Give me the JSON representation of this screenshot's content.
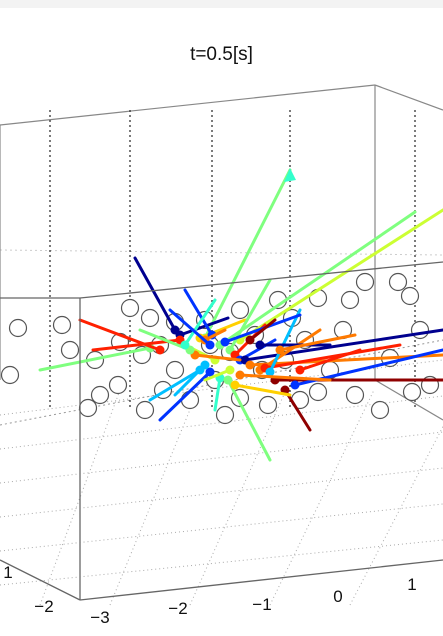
{
  "chart_data": {
    "type": "3d-scatter-vectors",
    "title": "t=0.5[s]",
    "x_ticks": [
      "−3",
      "−2",
      "−1",
      "0",
      "1"
    ],
    "y_ticks": [
      "−2",
      "1"
    ],
    "grid": true,
    "colormap": [
      "#00008f",
      "#0033ff",
      "#00bfff",
      "#33ffcc",
      "#7fff7f",
      "#ccff33",
      "#ffd000",
      "#ff7a00",
      "#ff2000",
      "#8f0000"
    ],
    "open_circle_count": 47,
    "vector_count": 40
  }
}
